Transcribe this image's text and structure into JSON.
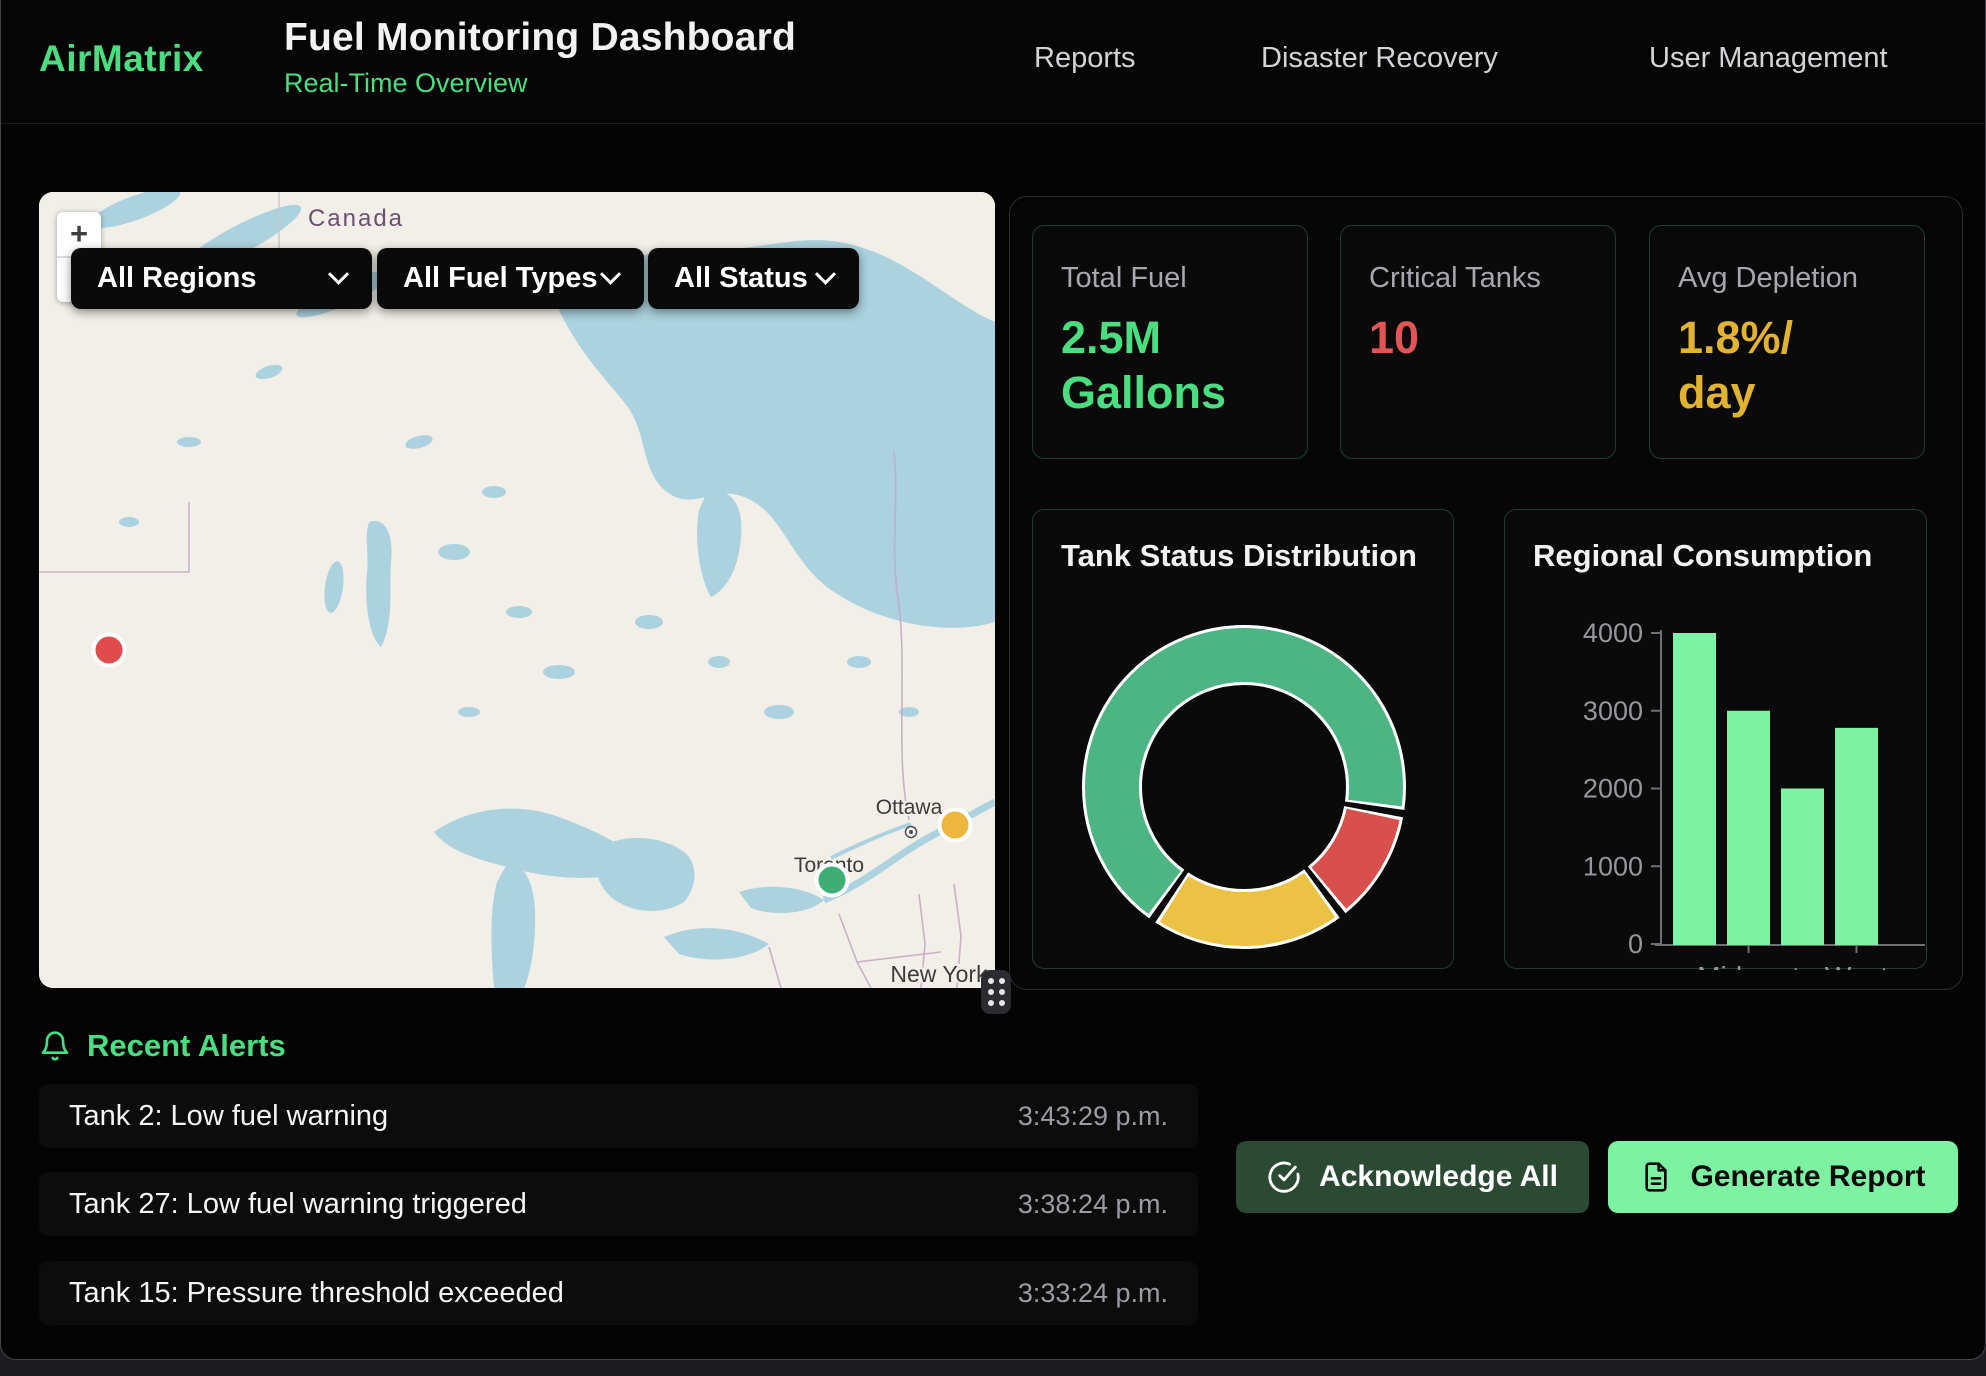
{
  "header": {
    "brand": "AirMatrix",
    "title": "Fuel Monitoring Dashboard",
    "subtitle": "Real-Time Overview",
    "nav": [
      {
        "label": "Reports"
      },
      {
        "label": "Disaster Recovery"
      },
      {
        "label": "User Management"
      }
    ]
  },
  "map": {
    "zoom_in": "+",
    "zoom_out": "−",
    "filters": [
      {
        "label": "All Regions"
      },
      {
        "label": "All Fuel Types"
      },
      {
        "label": "All Status"
      }
    ],
    "labels": {
      "country": "Canada",
      "ottawa": "Ottawa",
      "toronto": "Toronto",
      "new_york": "New York"
    },
    "markers": [
      {
        "status": "critical",
        "color": "#e14b4b"
      },
      {
        "status": "warning",
        "color": "#ecb73c"
      },
      {
        "status": "normal",
        "color": "#3fae72"
      }
    ]
  },
  "stats": [
    {
      "label": "Total Fuel",
      "value": "2.5M Gallons",
      "value_lines": [
        "2.5M",
        "Gallons"
      ],
      "color": "#4ade80"
    },
    {
      "label": "Critical Tanks",
      "value": "10",
      "value_lines": [
        "10"
      ],
      "color": "#e25555"
    },
    {
      "label": "Avg Depletion",
      "value": "1.8%/day",
      "value_lines": [
        "1.8%/",
        "day"
      ],
      "color": "#e2b231"
    }
  ],
  "chart_data": [
    {
      "type": "donut",
      "title": "Tank Status Distribution",
      "legend": false,
      "segments": [
        {
          "name": "green-segment",
          "color": "#4db583",
          "start_deg": 217,
          "sweep_deg": 240,
          "pct": 67
        },
        {
          "name": "red-segment",
          "color": "#d94f4c",
          "start_deg": 102,
          "sweep_deg": 38,
          "pct": 10
        },
        {
          "name": "yellow-segment",
          "color": "#ecc244",
          "start_deg": 145,
          "sweep_deg": 67,
          "pct": 19
        }
      ],
      "border_color": "#ffffff"
    },
    {
      "type": "bar",
      "title": "Regional Consumption",
      "categories": [
        "",
        "Midwest",
        "",
        "West"
      ],
      "values": [
        4000,
        3000,
        2000,
        2780
      ],
      "ylim": [
        0,
        4000
      ],
      "yticks": [
        0,
        1000,
        2000,
        3000,
        4000
      ],
      "bar_color": "#7df2a2",
      "axis_color": "#6f6f75",
      "tick_text_color": "#96969c",
      "grid": false,
      "legend": false
    }
  ],
  "alerts": {
    "title": "Recent Alerts",
    "items": [
      {
        "message": "Tank 2: Low fuel warning",
        "time": "3:43:29 p.m."
      },
      {
        "message": "Tank 27: Low fuel warning triggered",
        "time": "3:38:24 p.m."
      },
      {
        "message": "Tank 15: Pressure threshold exceeded",
        "time": "3:33:24 p.m."
      }
    ]
  },
  "actions": {
    "acknowledge": "Acknowledge All",
    "generate": "Generate Report"
  }
}
